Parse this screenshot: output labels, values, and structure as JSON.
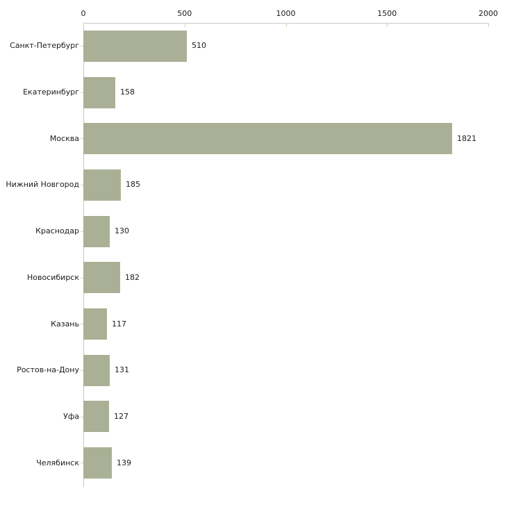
{
  "chart_data": {
    "type": "bar",
    "orientation": "horizontal",
    "categories": [
      "Санкт-Петербург",
      "Екатеринбург",
      "Москва",
      "Нижний Новгород",
      "Краснодар",
      "Новосибирск",
      "Казань",
      "Ростов-на-Дону",
      "Уфа",
      "Челябинск"
    ],
    "values": [
      510,
      158,
      1821,
      185,
      130,
      182,
      117,
      131,
      127,
      139
    ],
    "value_labels": [
      "510",
      "158",
      "1821",
      "185",
      "130",
      "182",
      "117",
      "131",
      "127",
      "139"
    ],
    "x_ticks": [
      "0",
      "500",
      "1000",
      "1500",
      "2000"
    ],
    "x_tick_values": [
      0,
      500,
      1000,
      1500,
      2000
    ],
    "xlim": [
      0,
      2000
    ],
    "title": "",
    "xlabel": "",
    "ylabel": "",
    "legend": "none",
    "grid": "off",
    "axis_position": "top",
    "colors": {
      "bar_fill": "#aab095",
      "axis_line": "#c9c9c9",
      "tick_mark": "#cfd3ad",
      "text": "#1a1a1a",
      "background": "#ffffff"
    }
  }
}
